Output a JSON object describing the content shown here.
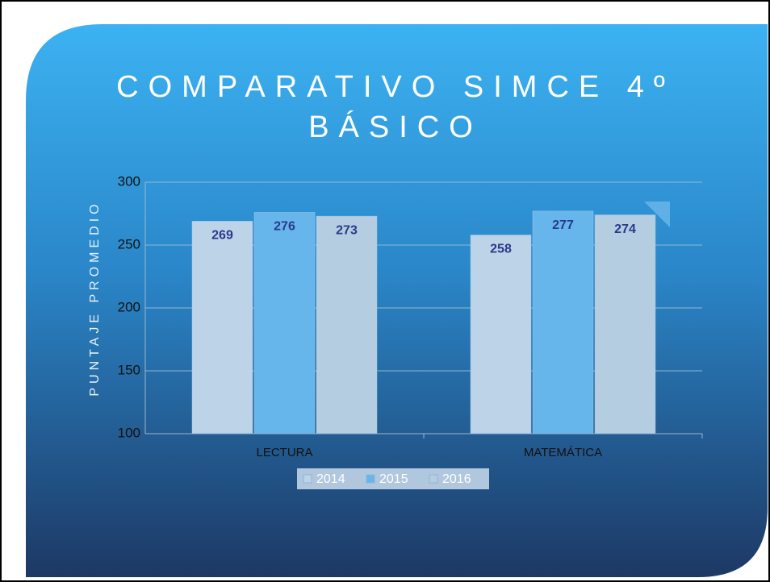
{
  "chart_data": {
    "type": "bar",
    "title": "COMPARATIVO SIMCE 4º BÁSICO",
    "y_label": "PUNTAJE PROMEDIO",
    "categories": [
      "LECTURA",
      "MATEMÁTICA"
    ],
    "series": [
      {
        "name": "2014",
        "color": "#bcd3e8",
        "values": [
          269,
          258
        ]
      },
      {
        "name": "2015",
        "color": "#66b6ec",
        "values": [
          276,
          277
        ]
      },
      {
        "name": "2016",
        "color": "#b4cde1",
        "values": [
          273,
          274
        ]
      }
    ],
    "ylim": [
      100,
      300
    ],
    "yticks": [
      100,
      150,
      200,
      250,
      300
    ],
    "grid": true,
    "legend": "bottom"
  }
}
